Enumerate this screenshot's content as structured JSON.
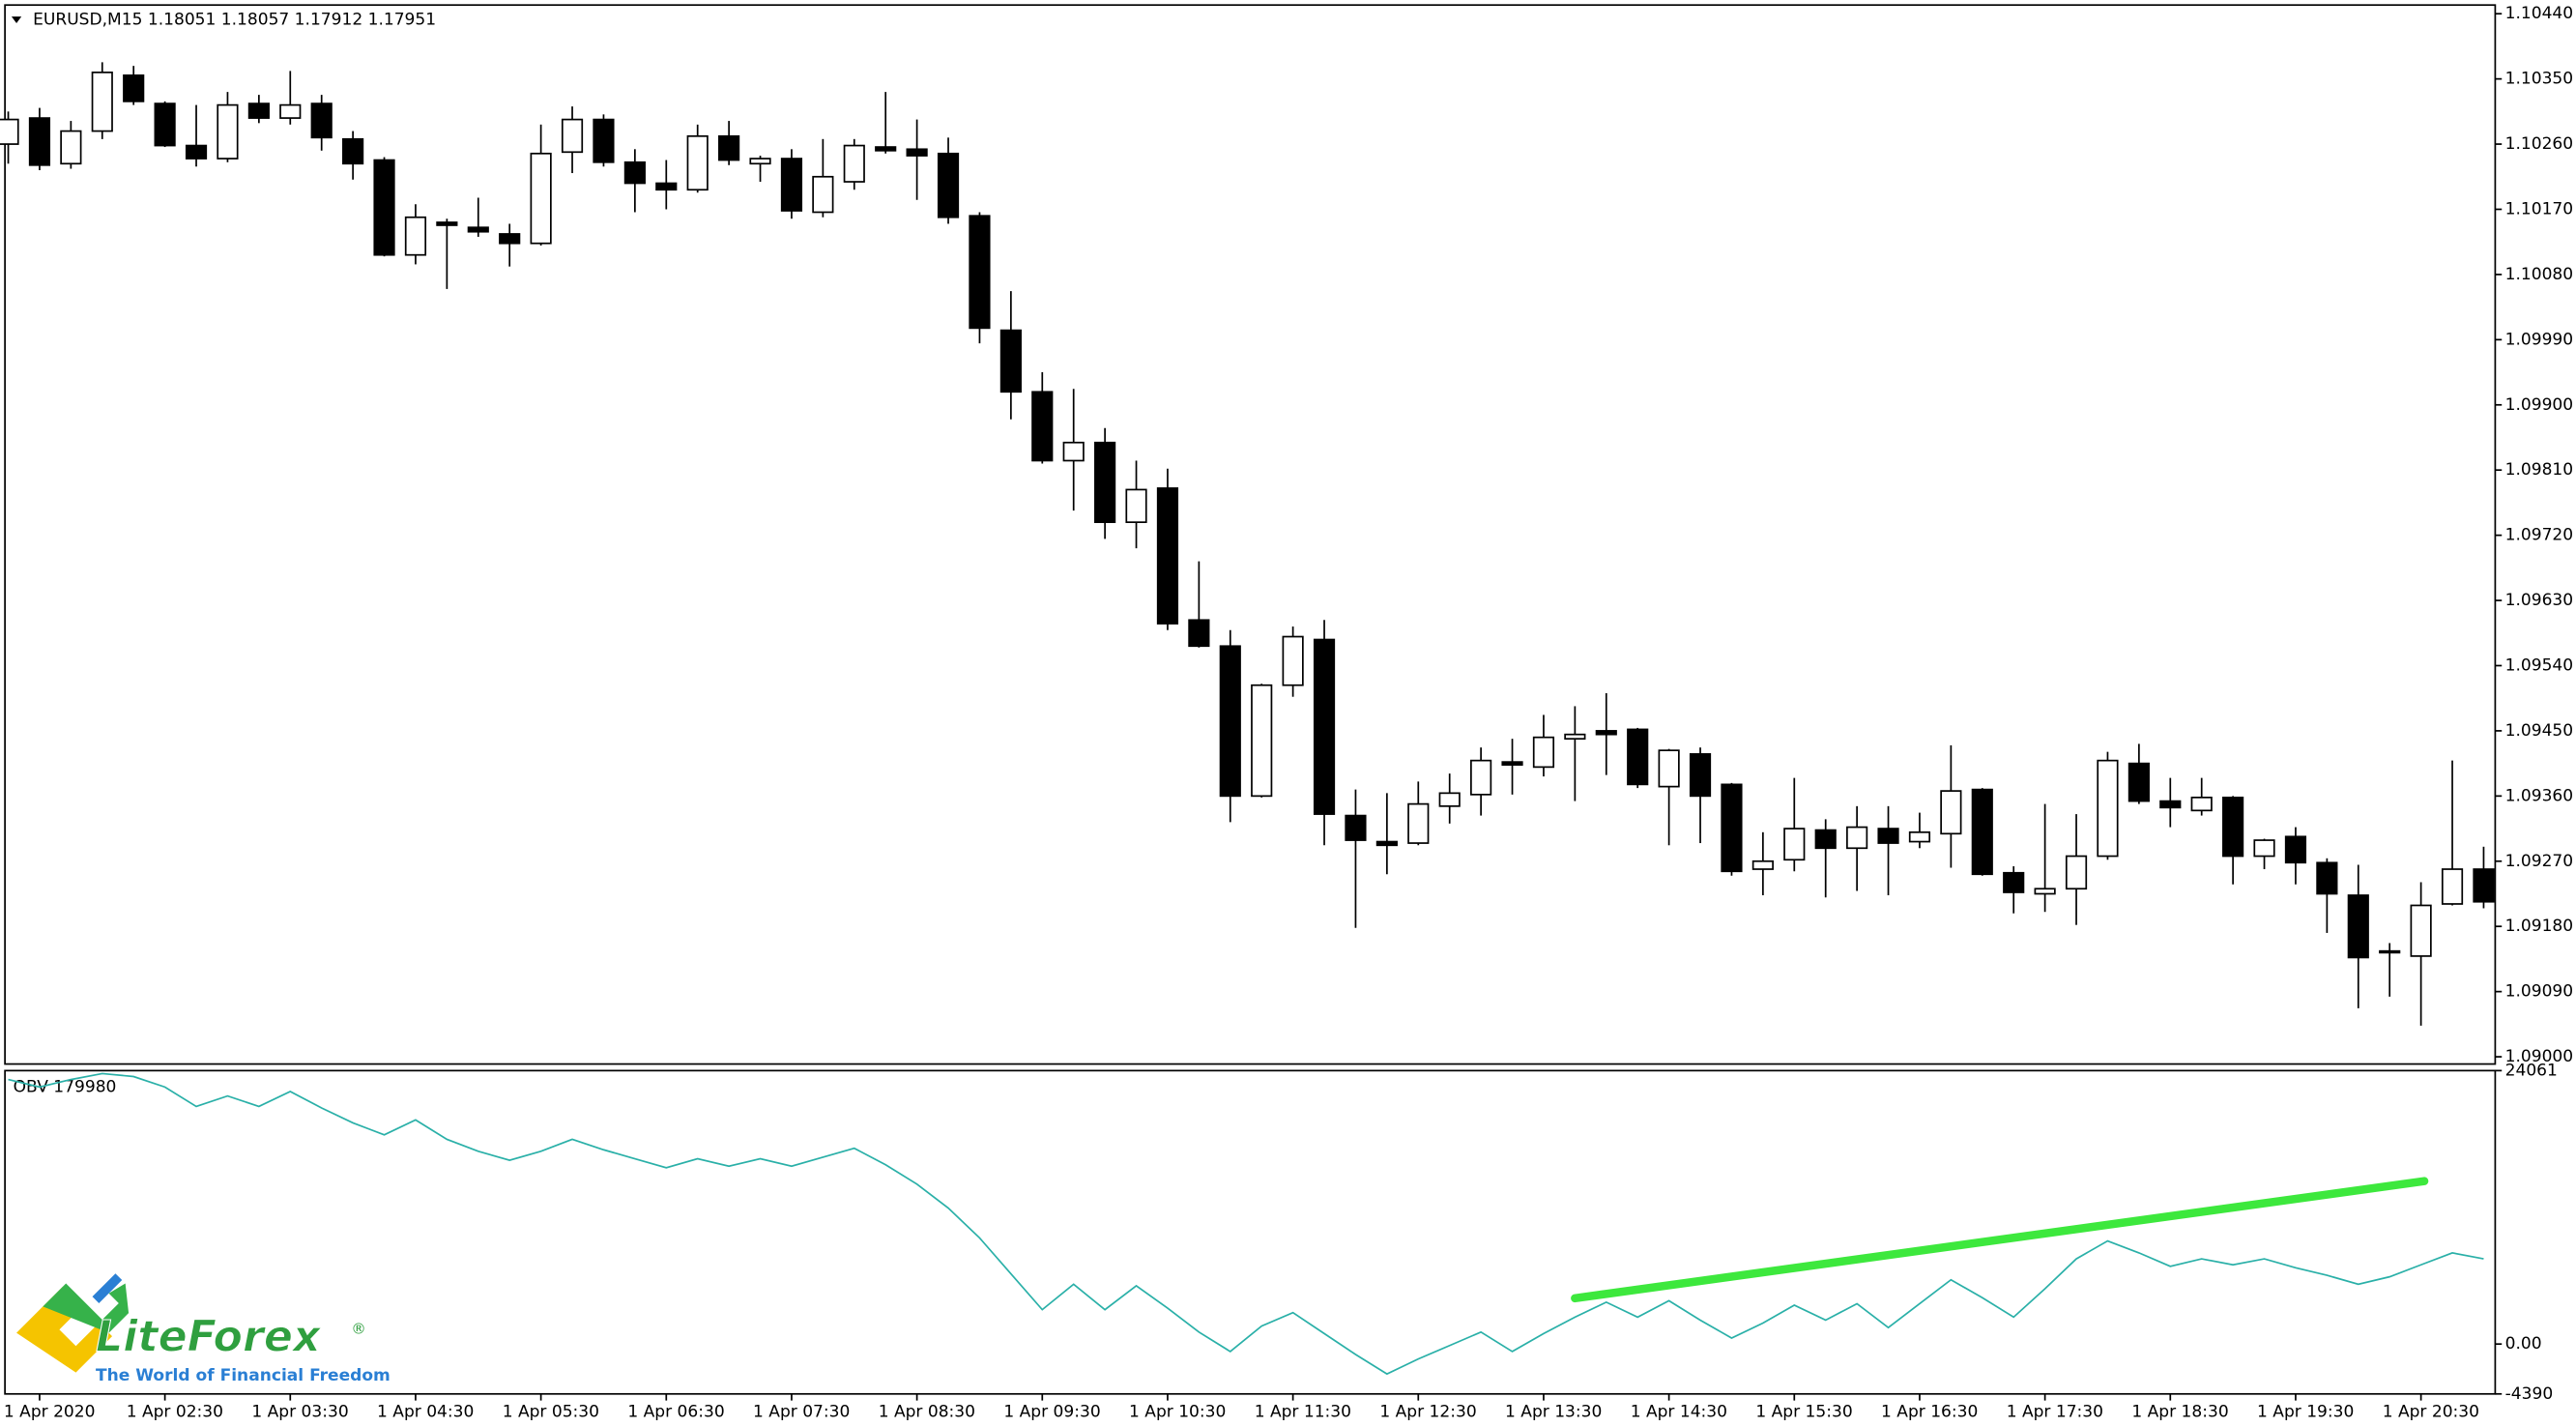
{
  "chart_data": [
    {
      "type": "candlestick",
      "title": "EURUSD,M15  1.18051 1.18057 1.17912 1.17951",
      "categories": [
        null,
        "1 Apr 2020",
        null,
        null,
        null,
        "1 Apr 02:30",
        null,
        null,
        null,
        "1 Apr 03:30",
        null,
        null,
        null,
        "1 Apr 04:30",
        null,
        null,
        null,
        "1 Apr 05:30",
        null,
        null,
        null,
        "1 Apr 06:30",
        null,
        null,
        null,
        "1 Apr 07:30",
        null,
        null,
        null,
        "1 Apr 08:30",
        null,
        null,
        null,
        "1 Apr 09:30",
        null,
        null,
        null,
        "1 Apr 10:30",
        null,
        null,
        null,
        "1 Apr 11:30",
        null,
        null,
        null,
        "1 Apr 12:30",
        null,
        null,
        null,
        "1 Apr 13:30",
        null,
        null,
        null,
        "1 Apr 14:30",
        null,
        null,
        null,
        "1 Apr 15:30",
        null,
        null,
        null,
        "1 Apr 16:30",
        null,
        null,
        null,
        "1 Apr 17:30",
        null,
        null,
        null,
        "1 Apr 18:30",
        null,
        null,
        null,
        "1 Apr 19:30",
        null,
        null,
        null,
        "1 Apr 20:30",
        null,
        null
      ],
      "open": [
        1.1026,
        1.10296,
        1.10233,
        1.10278,
        1.10355,
        1.10316,
        1.10258,
        1.1024,
        1.10316,
        1.10296,
        1.10316,
        1.10267,
        1.10238,
        1.10107,
        1.10152,
        1.10145,
        1.10136,
        1.10123,
        1.10249,
        1.10294,
        1.10235,
        1.10206,
        1.10197,
        1.10271,
        1.10233,
        1.1024,
        1.10166,
        1.10208,
        1.10256,
        1.10253,
        1.10247,
        1.10161,
        1.10003,
        1.09918,
        1.09823,
        1.09848,
        1.09738,
        1.09785,
        1.09603,
        1.09567,
        1.0936,
        1.09513,
        1.09576,
        1.09333,
        1.09297,
        1.09295,
        1.09346,
        1.09362,
        1.09407,
        1.094,
        1.09439,
        1.0945,
        1.09452,
        1.09373,
        1.09418,
        1.09376,
        1.09259,
        1.09272,
        1.09313,
        1.09288,
        1.09315,
        1.09297,
        1.09308,
        1.09369,
        1.09254,
        1.09225,
        1.09232,
        1.09277,
        1.09405,
        1.09353,
        1.0934,
        1.09358,
        1.09277,
        1.09304,
        1.09268,
        1.09223,
        1.09144,
        1.09139,
        1.09211,
        1.09259
      ],
      "high": [
        1.10305,
        1.1031,
        1.10292,
        1.10373,
        1.10368,
        1.10319,
        1.10314,
        1.10332,
        1.10328,
        1.10361,
        1.10328,
        1.10278,
        1.10242,
        1.10177,
        1.10157,
        1.10186,
        1.1015,
        1.10287,
        1.10312,
        1.10301,
        1.10253,
        1.10238,
        1.10287,
        1.10292,
        1.10244,
        1.10253,
        1.10267,
        1.10267,
        1.10332,
        1.10294,
        1.10269,
        1.10166,
        1.10057,
        1.09945,
        1.09922,
        1.09868,
        1.09823,
        1.09812,
        1.09684,
        1.09589,
        1.09515,
        1.09594,
        1.09603,
        1.09369,
        1.09364,
        1.0938,
        1.09391,
        1.09427,
        1.09439,
        1.09472,
        1.09484,
        1.09502,
        1.09454,
        1.09425,
        1.09427,
        1.09378,
        1.0931,
        1.09385,
        1.09328,
        1.09346,
        1.09346,
        1.09337,
        1.0943,
        1.09371,
        1.09263,
        1.09349,
        1.09335,
        1.09421,
        1.09432,
        1.09385,
        1.09385,
        1.0936,
        1.09301,
        1.09317,
        1.09274,
        1.09265,
        1.09157,
        1.09241,
        1.09409,
        1.0929
      ],
      "low": [
        1.10233,
        1.10224,
        1.10226,
        1.10267,
        1.10314,
        1.10256,
        1.10229,
        1.10235,
        1.10289,
        1.10287,
        1.10251,
        1.10211,
        1.10105,
        1.10094,
        1.1006,
        1.10132,
        1.10091,
        1.1012,
        1.1022,
        1.10229,
        1.10166,
        1.1017,
        1.10193,
        1.10231,
        1.10208,
        1.10157,
        1.10159,
        1.10197,
        1.10247,
        1.10183,
        1.1015,
        1.09985,
        1.0988,
        1.09819,
        1.09754,
        1.09715,
        1.09702,
        1.09589,
        1.09565,
        1.09324,
        1.09358,
        1.09497,
        1.09292,
        1.09178,
        1.09252,
        1.09292,
        1.09322,
        1.09333,
        1.09362,
        1.09387,
        1.09353,
        1.09389,
        1.09371,
        1.09292,
        1.09295,
        1.0925,
        1.09223,
        1.09256,
        1.0922,
        1.09229,
        1.09223,
        1.09288,
        1.09261,
        1.0925,
        1.09198,
        1.092,
        1.09182,
        1.09272,
        1.09349,
        1.09317,
        1.09333,
        1.09238,
        1.09259,
        1.09238,
        1.09171,
        1.09067,
        1.09083,
        1.09043,
        1.09209,
        1.09205
      ],
      "close": [
        1.10294,
        1.10231,
        1.10278,
        1.10359,
        1.10319,
        1.10258,
        1.1024,
        1.10314,
        1.10296,
        1.10314,
        1.10269,
        1.10233,
        1.10107,
        1.10159,
        1.10148,
        1.10139,
        1.10123,
        1.10247,
        1.10294,
        1.10235,
        1.10206,
        1.10197,
        1.10271,
        1.10238,
        1.1024,
        1.10168,
        1.10215,
        1.10258,
        1.10251,
        1.10244,
        1.10159,
        1.10006,
        1.09918,
        1.09823,
        1.09848,
        1.09738,
        1.09783,
        1.09598,
        1.09567,
        1.0936,
        1.09513,
        1.0958,
        1.09335,
        1.09299,
        1.09292,
        1.09349,
        1.09364,
        1.09409,
        1.09403,
        1.09441,
        1.09445,
        1.09445,
        1.09376,
        1.09423,
        1.0936,
        1.09256,
        1.0927,
        1.09315,
        1.09288,
        1.09317,
        1.09295,
        1.0931,
        1.09367,
        1.09252,
        1.09227,
        1.09232,
        1.09277,
        1.09409,
        1.09353,
        1.09344,
        1.09358,
        1.09277,
        1.09299,
        1.09268,
        1.09225,
        1.09137,
        1.09146,
        1.09209,
        1.09259,
        1.09214
      ],
      "bull_color": "#ffffff",
      "bear_color": "#000000",
      "ylim": [
        1.0899,
        1.10452
      ],
      "yticks": [
        {
          "value": 1.09,
          "label": "1.09000"
        },
        {
          "value": 1.0909,
          "label": "1.09090"
        },
        {
          "value": 1.0918,
          "label": "1.09180"
        },
        {
          "value": 1.0927,
          "label": "1.09270"
        },
        {
          "value": 1.0936,
          "label": "1.09360"
        },
        {
          "value": 1.0945,
          "label": "1.09450"
        },
        {
          "value": 1.0954,
          "label": "1.09540"
        },
        {
          "value": 1.0963,
          "label": "1.09630"
        },
        {
          "value": 1.0972,
          "label": "1.09720"
        },
        {
          "value": 1.0981,
          "label": "1.09810"
        },
        {
          "value": 1.099,
          "label": "1.09900"
        },
        {
          "value": 1.0999,
          "label": "1.09990"
        },
        {
          "value": 1.1008,
          "label": "1.10080"
        },
        {
          "value": 1.1017,
          "label": "1.10170"
        },
        {
          "value": 1.1026,
          "label": "1.10260"
        },
        {
          "value": 1.1035,
          "label": "1.10350"
        },
        {
          "value": 1.1044,
          "label": "1.10440"
        }
      ]
    },
    {
      "type": "line",
      "title": "OBV 179980",
      "series": [
        {
          "name": "OBV",
          "color": "#2ab0a8",
          "values": [
            23276,
            22618,
            23276,
            23802,
            23539,
            22618,
            20909,
            21829,
            20909,
            22224,
            20777,
            19462,
            18410,
            19725,
            18016,
            16964,
            16175,
            16964,
            18016,
            17095,
            16306,
            15517,
            16306,
            15649,
            16306,
            15649,
            16438,
            17227,
            15780,
            14071,
            11967,
            9337,
            6181,
            3025,
            5260,
            3025,
            5129,
            3156,
            1052,
            -658,
            1578,
            2762,
            921,
            -921,
            -2630,
            -1315,
            -132,
            1052,
            -658,
            921,
            2367,
            3682,
            2367,
            3814,
            2104,
            526,
            1841,
            3419,
            2104,
            3551,
            1447,
            3551,
            5655,
            4077,
            2367,
            4866,
            7496,
            9074,
            8022,
            6838,
            7496,
            6970,
            7496,
            6707,
            6049,
            5260,
            5918,
            6970,
            8022,
            7496
          ]
        }
      ],
      "ylim": [
        -4390,
        24061
      ],
      "yticks": [
        -4390,
        {
          "value": 0,
          "label": "0.00"
        },
        24061
      ]
    }
  ],
  "logo": {
    "name": "LiteForex",
    "mark": "®",
    "tagline": "The World of Financial Freedom"
  }
}
